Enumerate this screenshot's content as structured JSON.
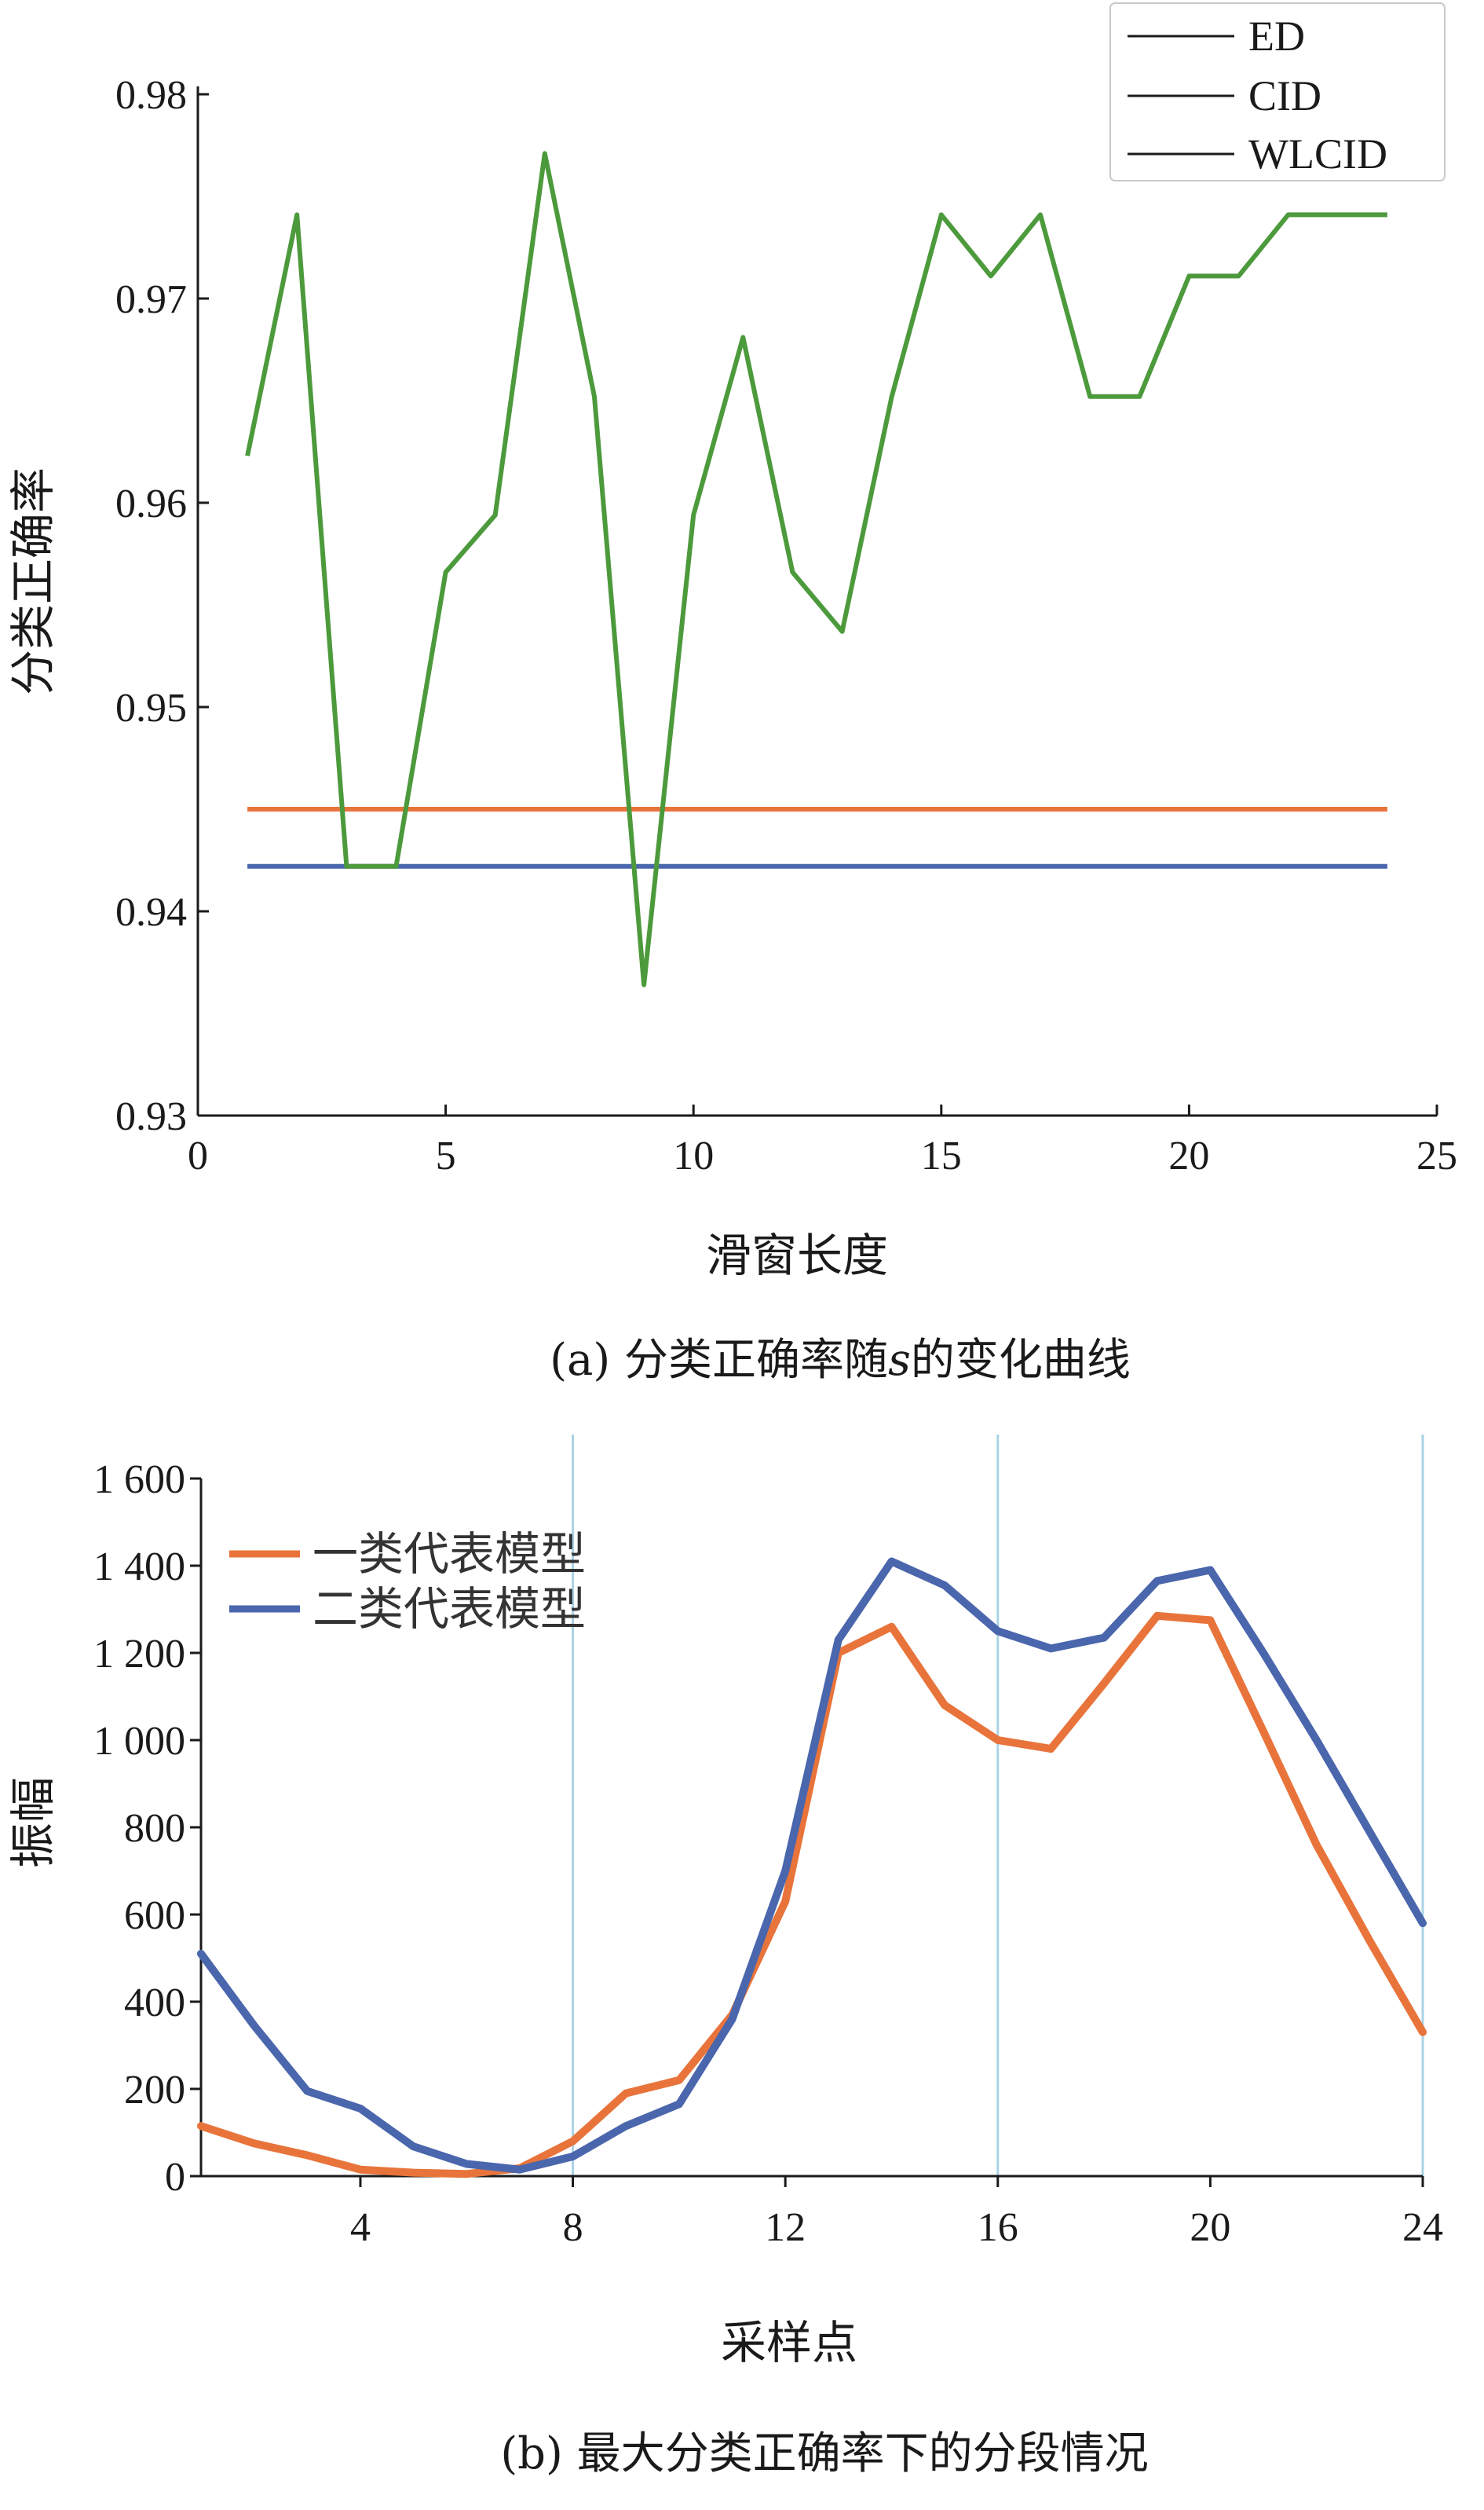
{
  "chart_data": [
    {
      "type": "line",
      "caption_prefix": "(a) 分类正确率随",
      "caption_var": "s",
      "caption_suffix": "的变化曲线",
      "xlabel": "滑窗长度",
      "ylabel": "分类正确率",
      "xlim": [
        0,
        25
      ],
      "ylim": [
        0.93,
        0.98
      ],
      "xticks": [
        "0",
        "5",
        "10",
        "15",
        "20",
        "25"
      ],
      "yticks": [
        "0.93",
        "0.94",
        "0.95",
        "0.96",
        "0.97",
        "0.98"
      ],
      "grid": false,
      "legend_position": "top-right",
      "legend_title": "",
      "series": [
        {
          "name": "ED",
          "color": "#e8743b",
          "x": [
            1,
            24
          ],
          "values": [
            0.945,
            0.945
          ]
        },
        {
          "name": "CID",
          "color": "#4a66ac",
          "x": [
            1,
            24
          ],
          "values": [
            0.9422,
            0.9422
          ]
        },
        {
          "name": "WLCID",
          "color": "#4c9a3c",
          "x": [
            1,
            2,
            3,
            4,
            5,
            6,
            7,
            8,
            9,
            10,
            11,
            12,
            13,
            14,
            15,
            16,
            17,
            18,
            19,
            20,
            21,
            22,
            23,
            24
          ],
          "values": [
            0.9623,
            0.9741,
            0.9422,
            0.9422,
            0.9566,
            0.9594,
            0.9771,
            0.9652,
            0.9364,
            0.9594,
            0.9681,
            0.9566,
            0.9537,
            0.9652,
            0.9741,
            0.9711,
            0.9741,
            0.9652,
            0.9652,
            0.9711,
            0.9711,
            0.9741,
            0.9741,
            0.9741
          ]
        }
      ]
    },
    {
      "type": "line",
      "caption": "(b) 最大分类正确率下的分段情况",
      "xlabel": "采样点",
      "ylabel": "振幅",
      "xlim": [
        1,
        24
      ],
      "ylim": [
        0,
        1600
      ],
      "xticks": [
        4,
        8,
        12,
        16,
        20,
        24
      ],
      "yticks": [
        0,
        200,
        400,
        600,
        800,
        1000,
        1200,
        1400,
        1600
      ],
      "ytick_labels": [
        "0",
        "200",
        "400",
        "600",
        "800",
        "1 000",
        "1 200",
        "1 400",
        "1 600"
      ],
      "segment_lines_x": [
        8,
        16,
        24
      ],
      "legend_position": "top-left",
      "series": [
        {
          "name": "一类代表模型",
          "color": "#e8743b",
          "x": [
            1,
            2,
            3,
            4,
            5,
            6,
            7,
            8,
            9,
            10,
            11,
            12,
            13,
            14,
            15,
            16,
            17,
            18,
            19,
            20,
            21,
            22,
            23,
            24
          ],
          "values": [
            115,
            75,
            48,
            15,
            8,
            5,
            18,
            80,
            190,
            220,
            370,
            630,
            1200,
            1260,
            1080,
            1000,
            980,
            1130,
            1285,
            1275,
            1020,
            760,
            540,
            330
          ]
        },
        {
          "name": "二类代表模型",
          "color": "#4a66ac",
          "x": [
            1,
            2,
            3,
            4,
            5,
            6,
            7,
            8,
            9,
            10,
            11,
            12,
            13,
            14,
            15,
            16,
            17,
            18,
            19,
            20,
            21,
            22,
            23,
            24
          ],
          "values": [
            510,
            345,
            195,
            155,
            68,
            28,
            15,
            45,
            115,
            165,
            360,
            700,
            1230,
            1410,
            1355,
            1250,
            1210,
            1235,
            1365,
            1390,
            1200,
            1000,
            790,
            580
          ]
        }
      ]
    }
  ]
}
